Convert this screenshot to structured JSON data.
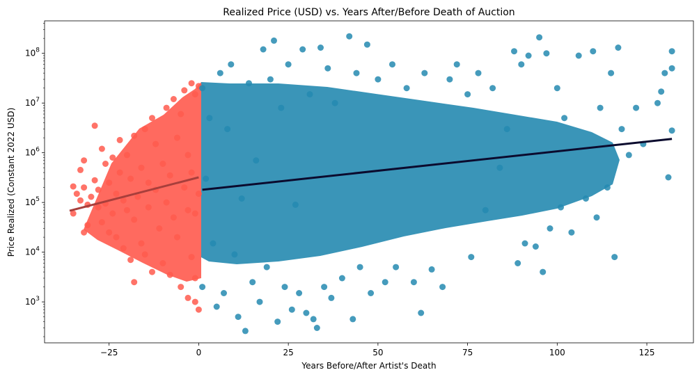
{
  "chart_data": {
    "type": "scatter",
    "title": "Realized Price (USD) vs. Years After/Before Death of Auction",
    "xlabel": "Years Before/After Artist's Death",
    "ylabel": "Price Realized (Constant 2022 USD)",
    "xlim": [
      -43,
      138
    ],
    "ylim": [
      150,
      450000000
    ],
    "yscale": "log",
    "xticks": [
      -25,
      0,
      25,
      50,
      75,
      100,
      125
    ],
    "xtick_labels": [
      "−25",
      "0",
      "25",
      "50",
      "75",
      "100",
      "125"
    ],
    "yticks": [
      1000,
      10000,
      100000,
      1000000,
      10000000,
      100000000
    ],
    "ytick_labels": [
      {
        "base": "10",
        "exp": "3"
      },
      {
        "base": "10",
        "exp": "4"
      },
      {
        "base": "10",
        "exp": "5"
      },
      {
        "base": "10",
        "exp": "6"
      },
      {
        "base": "10",
        "exp": "7"
      },
      {
        "base": "10",
        "exp": "8"
      }
    ],
    "grid": false,
    "series": [
      {
        "color": "#ff5a4e",
        "points": [
          [
            -35,
            60000
          ],
          [
            -35,
            210000
          ],
          [
            -34,
            150000
          ],
          [
            -33,
            450000
          ],
          [
            -33,
            110000
          ],
          [
            -32,
            700000
          ],
          [
            -32,
            25000
          ],
          [
            -32,
            200000
          ],
          [
            -31,
            35000
          ],
          [
            -31,
            90000
          ],
          [
            -30,
            130000
          ],
          [
            -29,
            3500000
          ],
          [
            -29,
            280000
          ],
          [
            -28,
            180000
          ],
          [
            -28,
            80000
          ],
          [
            -27,
            1200000
          ],
          [
            -27,
            40000
          ],
          [
            -26,
            600000
          ],
          [
            -26,
            95000
          ],
          [
            -25,
            25000
          ],
          [
            -25,
            250000
          ],
          [
            -24,
            800000
          ],
          [
            -24,
            60000
          ],
          [
            -23,
            150000
          ],
          [
            -23,
            20000
          ],
          [
            -22,
            400000
          ],
          [
            -22,
            1800000
          ],
          [
            -21,
            12000
          ],
          [
            -21,
            110000
          ],
          [
            -20,
            70000
          ],
          [
            -20,
            900000
          ],
          [
            -19,
            7000
          ],
          [
            -19,
            300000
          ],
          [
            -18,
            2500
          ],
          [
            -18,
            2200000
          ],
          [
            -18,
            45000
          ],
          [
            -17,
            130000
          ],
          [
            -16,
            15000
          ],
          [
            -16,
            500000
          ],
          [
            -15,
            3000000
          ],
          [
            -15,
            9000
          ],
          [
            -14,
            250000
          ],
          [
            -14,
            80000
          ],
          [
            -13,
            5000000
          ],
          [
            -13,
            4000
          ],
          [
            -12,
            180000
          ],
          [
            -12,
            1500000
          ],
          [
            -11,
            30000
          ],
          [
            -10,
            600000
          ],
          [
            -10,
            6000
          ],
          [
            -9,
            8000000
          ],
          [
            -9,
            100000
          ],
          [
            -8,
            3500
          ],
          [
            -8,
            350000
          ],
          [
            -7,
            12000000
          ],
          [
            -7,
            50000
          ],
          [
            -6,
            2000000
          ],
          [
            -6,
            20000
          ],
          [
            -5,
            6000000
          ],
          [
            -5,
            2000
          ],
          [
            -4,
            200000
          ],
          [
            -4,
            18000000
          ],
          [
            -3,
            1200
          ],
          [
            -3,
            70000
          ],
          [
            -3,
            900000
          ],
          [
            -2,
            25000000
          ],
          [
            -2,
            8000
          ],
          [
            -2,
            400000
          ],
          [
            -1,
            3000
          ],
          [
            -1,
            15000000
          ],
          [
            -1,
            1000
          ],
          [
            0,
            700
          ],
          [
            0,
            22000000
          ],
          [
            0,
            150000
          ],
          [
            -1,
            60000
          ]
        ],
        "regression": {
          "x": [
            -36,
            0
          ],
          "y": [
            68000,
            320000
          ],
          "color": "#a83f3c"
        }
      },
      {
        "color": "#2589b0",
        "points": [
          [
            1,
            2000
          ],
          [
            1,
            20000000
          ],
          [
            2,
            300000
          ],
          [
            3,
            5000000
          ],
          [
            4,
            15000
          ],
          [
            5,
            800
          ],
          [
            6,
            40000000
          ],
          [
            7,
            1500
          ],
          [
            8,
            3000000
          ],
          [
            9,
            60000000
          ],
          [
            10,
            9000
          ],
          [
            11,
            500
          ],
          [
            12,
            120000
          ],
          [
            13,
            260
          ],
          [
            14,
            25000000
          ],
          [
            15,
            2500
          ],
          [
            16,
            700000
          ],
          [
            17,
            1000
          ],
          [
            18,
            120000000
          ],
          [
            19,
            5000
          ],
          [
            20,
            30000000
          ],
          [
            21,
            180000000
          ],
          [
            22,
            400
          ],
          [
            23,
            8000000
          ],
          [
            24,
            2000
          ],
          [
            25,
            60000000
          ],
          [
            26,
            700
          ],
          [
            27,
            90000
          ],
          [
            28,
            1500
          ],
          [
            29,
            120000000
          ],
          [
            30,
            600
          ],
          [
            31,
            15000000
          ],
          [
            32,
            450
          ],
          [
            33,
            300
          ],
          [
            34,
            130000000
          ],
          [
            35,
            2000
          ],
          [
            36,
            50000000
          ],
          [
            37,
            1200
          ],
          [
            38,
            10000000
          ],
          [
            40,
            3000
          ],
          [
            42,
            220000000
          ],
          [
            43,
            450
          ],
          [
            44,
            40000000
          ],
          [
            45,
            5000
          ],
          [
            47,
            150000000
          ],
          [
            48,
            1500
          ],
          [
            50,
            30000000
          ],
          [
            52,
            2500
          ],
          [
            54,
            60000000
          ],
          [
            55,
            5000
          ],
          [
            58,
            20000000
          ],
          [
            60,
            2500
          ],
          [
            62,
            600
          ],
          [
            63,
            40000000
          ],
          [
            65,
            4500
          ],
          [
            68,
            2000
          ],
          [
            70,
            30000000
          ],
          [
            72,
            60000000
          ],
          [
            75,
            15000000
          ],
          [
            76,
            8000
          ],
          [
            78,
            40000000
          ],
          [
            80,
            70000
          ],
          [
            82,
            20000000
          ],
          [
            84,
            500000
          ],
          [
            86,
            3000000
          ],
          [
            88,
            110000000
          ],
          [
            89,
            6000
          ],
          [
            90,
            60000000
          ],
          [
            91,
            15000
          ],
          [
            92,
            90000000
          ],
          [
            94,
            13000
          ],
          [
            95,
            210000000
          ],
          [
            96,
            4000
          ],
          [
            97,
            100000000
          ],
          [
            98,
            30000
          ],
          [
            100,
            20000000
          ],
          [
            101,
            80000
          ],
          [
            102,
            5000000
          ],
          [
            104,
            25000
          ],
          [
            106,
            90000000
          ],
          [
            108,
            120000
          ],
          [
            110,
            110000000
          ],
          [
            111,
            50000
          ],
          [
            112,
            8000000
          ],
          [
            114,
            200000
          ],
          [
            115,
            40000000
          ],
          [
            116,
            8000
          ],
          [
            117,
            130000000
          ],
          [
            118,
            3000000
          ],
          [
            120,
            900000
          ],
          [
            122,
            8000000
          ],
          [
            124,
            1500000
          ],
          [
            128,
            10000000
          ],
          [
            129,
            17000000
          ],
          [
            130,
            40000000
          ],
          [
            131,
            320000
          ],
          [
            132,
            110000000
          ],
          [
            132,
            50000000
          ],
          [
            132,
            2800000
          ]
        ],
        "regression": {
          "x": [
            1,
            132
          ],
          "y": [
            180000,
            1900000
          ],
          "color": "#0b0b2e"
        }
      }
    ]
  }
}
